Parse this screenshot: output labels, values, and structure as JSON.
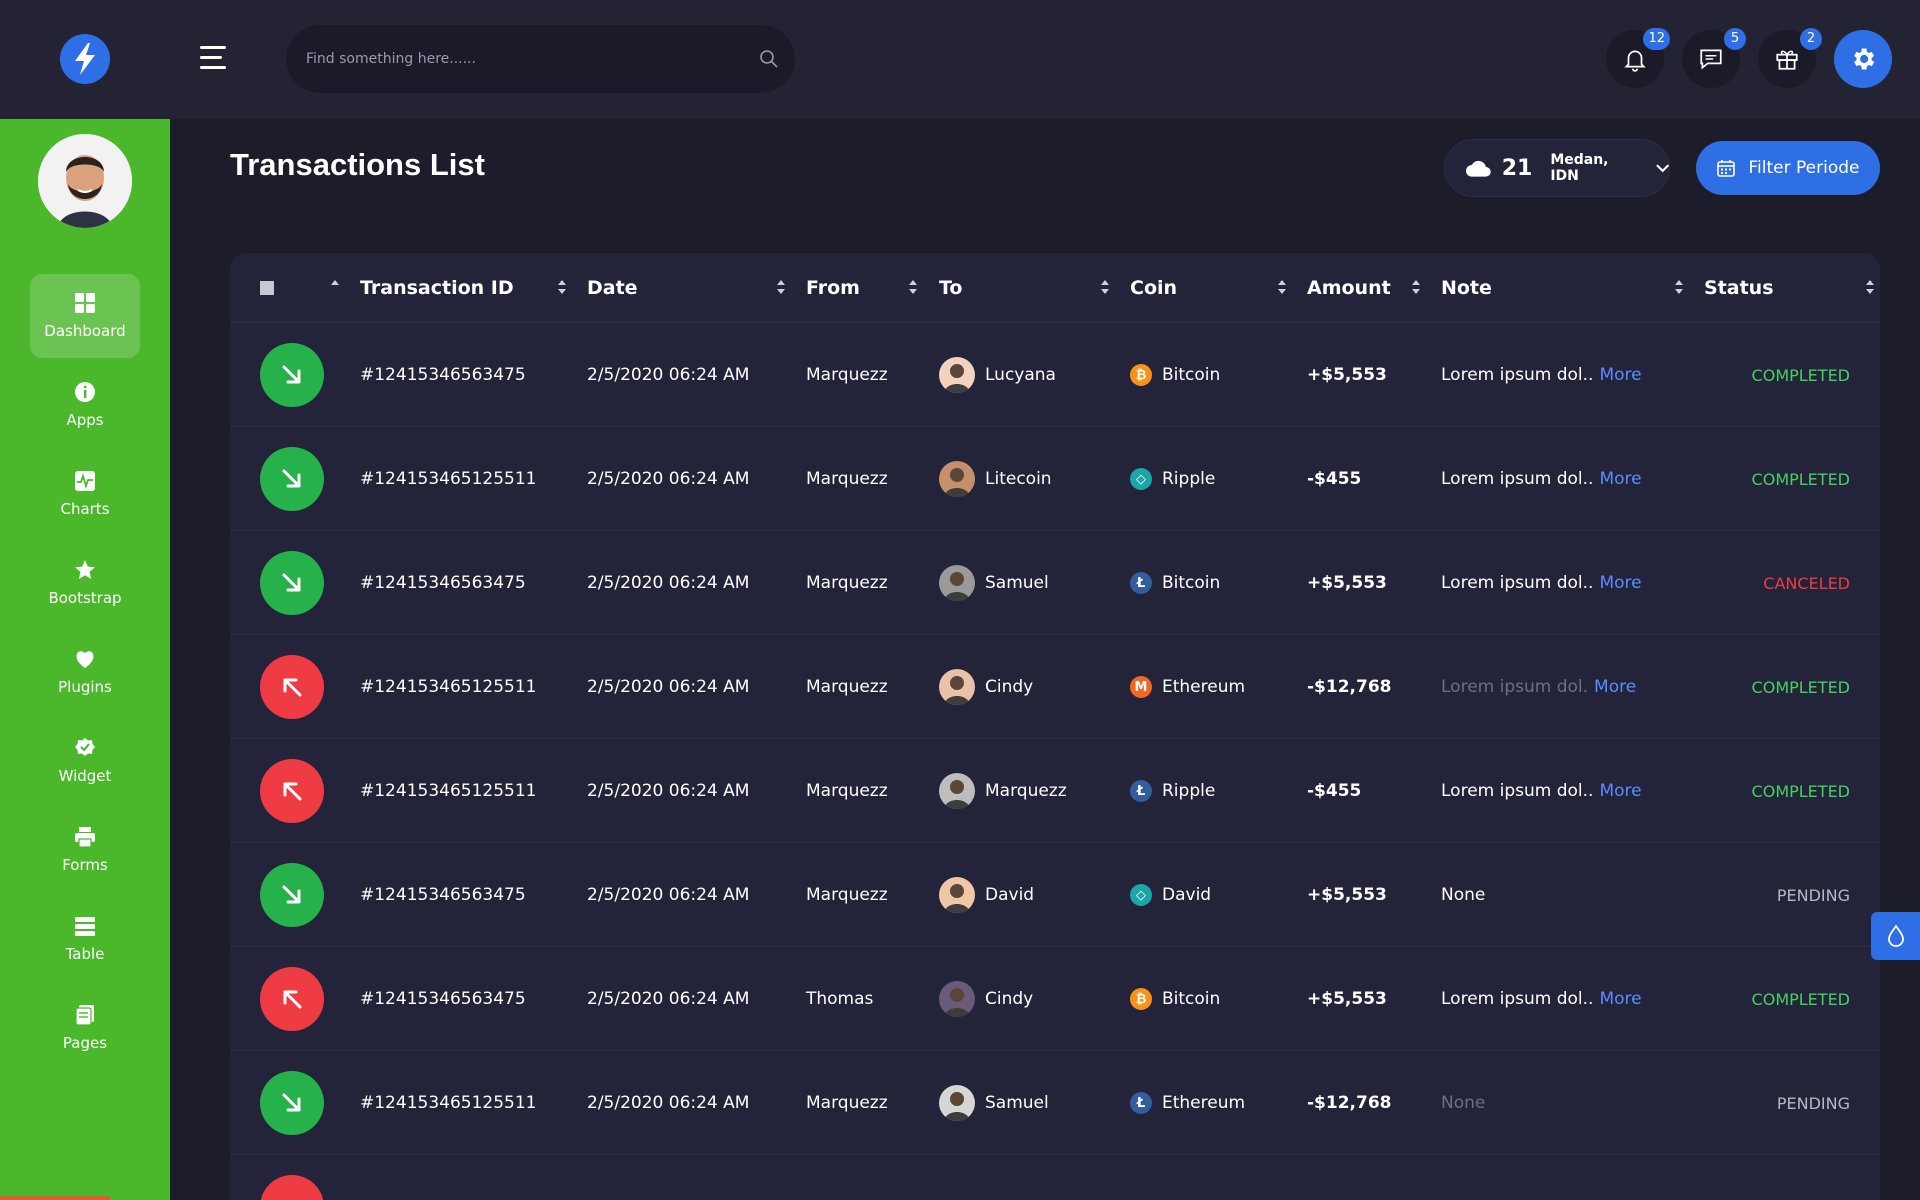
{
  "header": {
    "search_placeholder": "Find something here......",
    "notifications": {
      "icon": "bell-icon",
      "count": "12"
    },
    "messages": {
      "icon": "chat-icon",
      "count": "5"
    },
    "gifts": {
      "icon": "gift-icon",
      "count": "2"
    },
    "settings": {
      "icon": "gear-icon"
    }
  },
  "sidebar": {
    "items": [
      {
        "label": "Dashboard",
        "icon": "grid-icon",
        "active": true
      },
      {
        "label": "Apps",
        "icon": "info-icon"
      },
      {
        "label": "Charts",
        "icon": "chart-icon"
      },
      {
        "label": "Bootstrap",
        "icon": "star-icon"
      },
      {
        "label": "Plugins",
        "icon": "heart-icon"
      },
      {
        "label": "Widget",
        "icon": "badge-check-icon"
      },
      {
        "label": "Forms",
        "icon": "printer-icon"
      },
      {
        "label": "Table",
        "icon": "table-icon"
      },
      {
        "label": "Pages",
        "icon": "pages-icon"
      }
    ]
  },
  "page": {
    "title": "Transactions List",
    "weather": {
      "temp": "21",
      "location": "Medan, IDN",
      "icon": "cloud-icon"
    },
    "filter_label": "Filter Periode"
  },
  "table": {
    "columns": [
      "Transaction ID",
      "Date",
      "From",
      "To",
      "Coin",
      "Amount",
      "Note",
      "Status"
    ],
    "more_label": "More",
    "rows": [
      {
        "dir": "in",
        "id": "#12415346563475",
        "date": "2/5/2020 06:24 AM",
        "from": "Marquezz",
        "to": "Lucyana",
        "coin": "Bitcoin",
        "coin_icon": "btc",
        "amount": "+$5,553",
        "note": "Lorem ipsum dol..",
        "note_dim": false,
        "more": true,
        "status": "COMPLETED"
      },
      {
        "dir": "in",
        "id": "#12415346512551​1",
        "date": "2/5/2020 06:24 AM",
        "from": "Marquezz",
        "to": "Litecoin",
        "coin": "Ripple",
        "coin_icon": "xrp",
        "amount": "-$455",
        "note": "Lorem ipsum dol..",
        "note_dim": false,
        "more": true,
        "status": "COMPLETED"
      },
      {
        "dir": "in",
        "id": "#12415346563475",
        "date": "2/5/2020 06:24 AM",
        "from": "Marquezz",
        "to": "Samuel",
        "coin": "Bitcoin",
        "coin_icon": "ltc",
        "amount": "+$5,553",
        "note": "Lorem ipsum dol..",
        "note_dim": false,
        "more": true,
        "status": "CANCELED"
      },
      {
        "dir": "out",
        "id": "#12415346512551​1",
        "date": "2/5/2020 06:24 AM",
        "from": "Marquezz",
        "to": "Cindy",
        "coin": "Ethereum",
        "coin_icon": "xmr",
        "amount": "-$12,768",
        "note": "Lorem ipsum dol.",
        "note_dim": true,
        "more": true,
        "status": "COMPLETED"
      },
      {
        "dir": "out",
        "id": "#12415346512551​1",
        "date": "2/5/2020 06:24 AM",
        "from": "Marquezz",
        "to": "Marquezz",
        "coin": "Ripple",
        "coin_icon": "ltc",
        "amount": "-$455",
        "note": "Lorem ipsum dol..",
        "note_dim": false,
        "more": true,
        "status": "COMPLETED"
      },
      {
        "dir": "in",
        "id": "#12415346563475",
        "date": "2/5/2020 06:24 AM",
        "from": "Marquezz",
        "to": "David",
        "coin": "David",
        "coin_icon": "xrp",
        "amount": "+$5,553",
        "note": "None",
        "note_dim": false,
        "more": false,
        "status": "PENDING"
      },
      {
        "dir": "out",
        "id": "#12415346563475",
        "date": "2/5/2020 06:24 AM",
        "from": "Thomas",
        "to": "Cindy",
        "coin": "Bitcoin",
        "coin_icon": "btc",
        "amount": "+$5,553",
        "note": "Lorem ipsum dol..",
        "note_dim": false,
        "more": true,
        "status": "COMPLETED"
      },
      {
        "dir": "in",
        "id": "#12415346512551​1",
        "date": "2/5/2020 06:24 AM",
        "from": "Marquezz",
        "to": "Samuel",
        "coin": "Ethereum",
        "coin_icon": "ltc",
        "amount": "-$12,768",
        "note": "None",
        "note_dim": true,
        "more": false,
        "status": "PENDING"
      }
    ]
  },
  "colors": {
    "sidebar": "#4bb82c",
    "accent": "#2f6fe6",
    "completed": "#46d160",
    "canceled": "#ef3b44",
    "incoming": "#27b14a",
    "outgoing": "#ef3b44"
  }
}
